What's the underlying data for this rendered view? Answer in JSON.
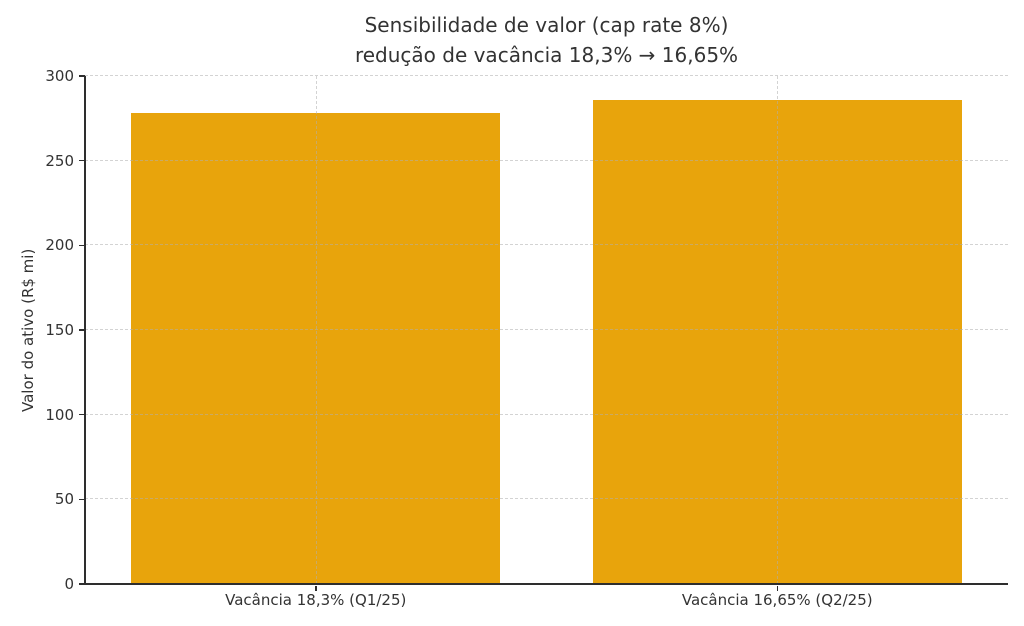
{
  "figure": {
    "background": "#ffffff",
    "title_line1": "Sensibilidade de valor (cap rate 8%)",
    "title_line2": "redução de vacância 18,3% → 16,65%"
  },
  "chart_data": {
    "type": "bar",
    "title": "Sensibilidade de valor (cap rate 8%)\nredução de vacância 18,3% → 16,65%",
    "categories": [
      "Vacância 18,3% (Q1/25)",
      "Vacância 16,65% (Q2/25)"
    ],
    "values": [
      278,
      286
    ],
    "xlabel": "",
    "ylabel": "Valor do ativo (R$ mi)",
    "ylim": [
      0,
      300
    ],
    "yticks": [
      0,
      50,
      100,
      150,
      200,
      250,
      300
    ],
    "bar_width_fraction": 0.8,
    "grid": "on",
    "legend": "none",
    "bar_color": "#E8A40C",
    "grid_color": "#afafaf",
    "axis_color": "#2e2e2e",
    "text_color": "#333333"
  }
}
